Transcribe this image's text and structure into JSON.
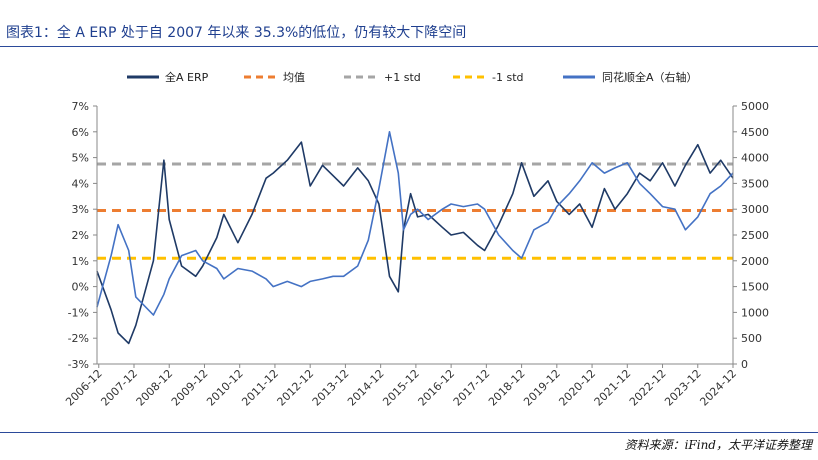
{
  "title": "图表1：全 A ERP 处于自 2007 年以来 35.3%的低位，仍有较大下降空间",
  "source": "资料来源：iFind，太平洋证券整理",
  "chart_data": {
    "type": "line",
    "left_axis": {
      "ticks": [
        "7%",
        "6%",
        "5%",
        "4%",
        "3%",
        "2%",
        "1%",
        "0%",
        "-1%",
        "-2%",
        "-3%"
      ],
      "range": [
        -3,
        7
      ]
    },
    "right_axis": {
      "ticks": [
        "5000",
        "4500",
        "4000",
        "3500",
        "3000",
        "2500",
        "2000",
        "1500",
        "1000",
        "500",
        "0"
      ],
      "range": [
        0,
        5000
      ]
    },
    "x_ticks": [
      "2006-12",
      "2007-12",
      "2008-12",
      "2009-12",
      "2010-12",
      "2011-12",
      "2012-12",
      "2013-12",
      "2014-12",
      "2015-12",
      "2016-12",
      "2017-12",
      "2018-12",
      "2019-12",
      "2020-12",
      "2021-12",
      "2022-12",
      "2023-12",
      "2024-12"
    ],
    "legend": [
      "全A ERP",
      "均值",
      "+1 std",
      "-1 std",
      "同花顺全A（右轴）"
    ],
    "colors": {
      "erp": "#1f3a66",
      "mean": "#ed7d31",
      "plus_std": "#a5a5a5",
      "minus_std": "#ffc000",
      "index": "#4472c4"
    },
    "reference_lines": {
      "mean": 2.95,
      "plus_std": 4.75,
      "minus_std": 1.1
    },
    "x": [
      2006.9,
      2007.3,
      2007.5,
      2007.8,
      2008.0,
      2008.5,
      2008.8,
      2008.95,
      2009.3,
      2009.7,
      2009.9,
      2010.3,
      2010.5,
      2010.9,
      2011.3,
      2011.7,
      2011.9,
      2012.3,
      2012.7,
      2012.95,
      2013.3,
      2013.6,
      2013.9,
      2014.3,
      2014.6,
      2014.9,
      2015.2,
      2015.45,
      2015.6,
      2015.8,
      2016.0,
      2016.3,
      2016.7,
      2016.95,
      2017.3,
      2017.7,
      2017.9,
      2018.3,
      2018.7,
      2018.95,
      2019.3,
      2019.7,
      2019.95,
      2020.3,
      2020.6,
      2020.95,
      2021.3,
      2021.6,
      2021.95,
      2022.3,
      2022.6,
      2022.95,
      2023.3,
      2023.6,
      2023.95,
      2024.3,
      2024.6,
      2024.95
    ],
    "series": [
      {
        "name": "全A ERP",
        "axis": "left",
        "values": [
          0.6,
          -0.9,
          -1.8,
          -2.2,
          -1.5,
          1.0,
          4.9,
          2.6,
          0.8,
          0.4,
          0.8,
          1.9,
          2.8,
          1.7,
          2.8,
          4.2,
          4.4,
          4.9,
          5.6,
          3.9,
          4.7,
          4.3,
          3.9,
          4.6,
          4.1,
          3.2,
          0.4,
          -0.2,
          2.2,
          3.6,
          2.7,
          2.8,
          2.3,
          2.0,
          2.1,
          1.6,
          1.4,
          2.4,
          3.6,
          4.8,
          3.5,
          4.1,
          3.3,
          2.8,
          3.2,
          2.3,
          3.8,
          3.0,
          3.6,
          4.4,
          4.1,
          4.8,
          3.9,
          4.7,
          5.5,
          4.4,
          4.9,
          4.2
        ]
      },
      {
        "name": "同花顺全A（右轴）",
        "axis": "right",
        "values": [
          1100,
          2100,
          2700,
          2200,
          1300,
          950,
          1350,
          1650,
          2100,
          2200,
          2000,
          1850,
          1650,
          1850,
          1800,
          1650,
          1500,
          1600,
          1500,
          1600,
          1650,
          1700,
          1700,
          1900,
          2400,
          3400,
          4500,
          3700,
          2600,
          2900,
          3000,
          2800,
          3000,
          3100,
          3050,
          3100,
          3000,
          2500,
          2200,
          2050,
          2600,
          2750,
          3050,
          3300,
          3550,
          3900,
          3700,
          3800,
          3900,
          3500,
          3300,
          3050,
          3000,
          2600,
          2850,
          3300,
          3450,
          3700
        ]
      }
    ]
  }
}
